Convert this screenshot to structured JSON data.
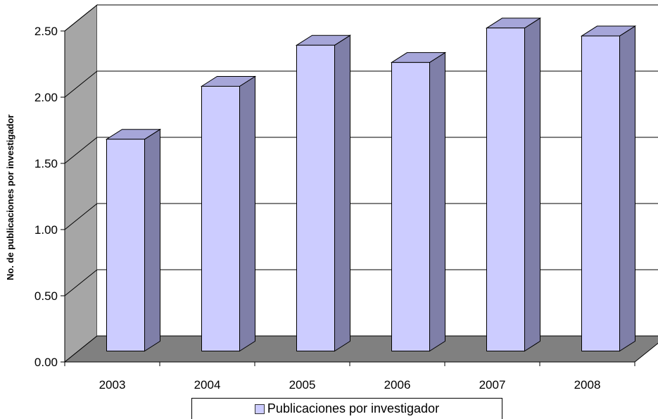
{
  "chart_data": {
    "type": "bar",
    "style": "3d-column",
    "categories": [
      "2003",
      "2004",
      "2005",
      "2006",
      "2007",
      "2008"
    ],
    "series": [
      {
        "name": "Publicaciones por investigador",
        "values": [
          1.6,
          2.0,
          2.31,
          2.18,
          2.44,
          2.38
        ]
      }
    ],
    "ylabel": "No. de publicaciones por investigador",
    "ylim": [
      0,
      2.5
    ],
    "yticks": [
      "0.00",
      "0.50",
      "1.00",
      "1.50",
      "2.00",
      "2.50"
    ],
    "grid": true,
    "legend": "bottom",
    "colors": {
      "bar_front": "#ccccff",
      "bar_side": "#7f7fa8",
      "bar_top": "#a6a6d9",
      "back_wall": "#ffffff",
      "side_wall": "#a6a6a6",
      "floor": "#808080"
    }
  }
}
